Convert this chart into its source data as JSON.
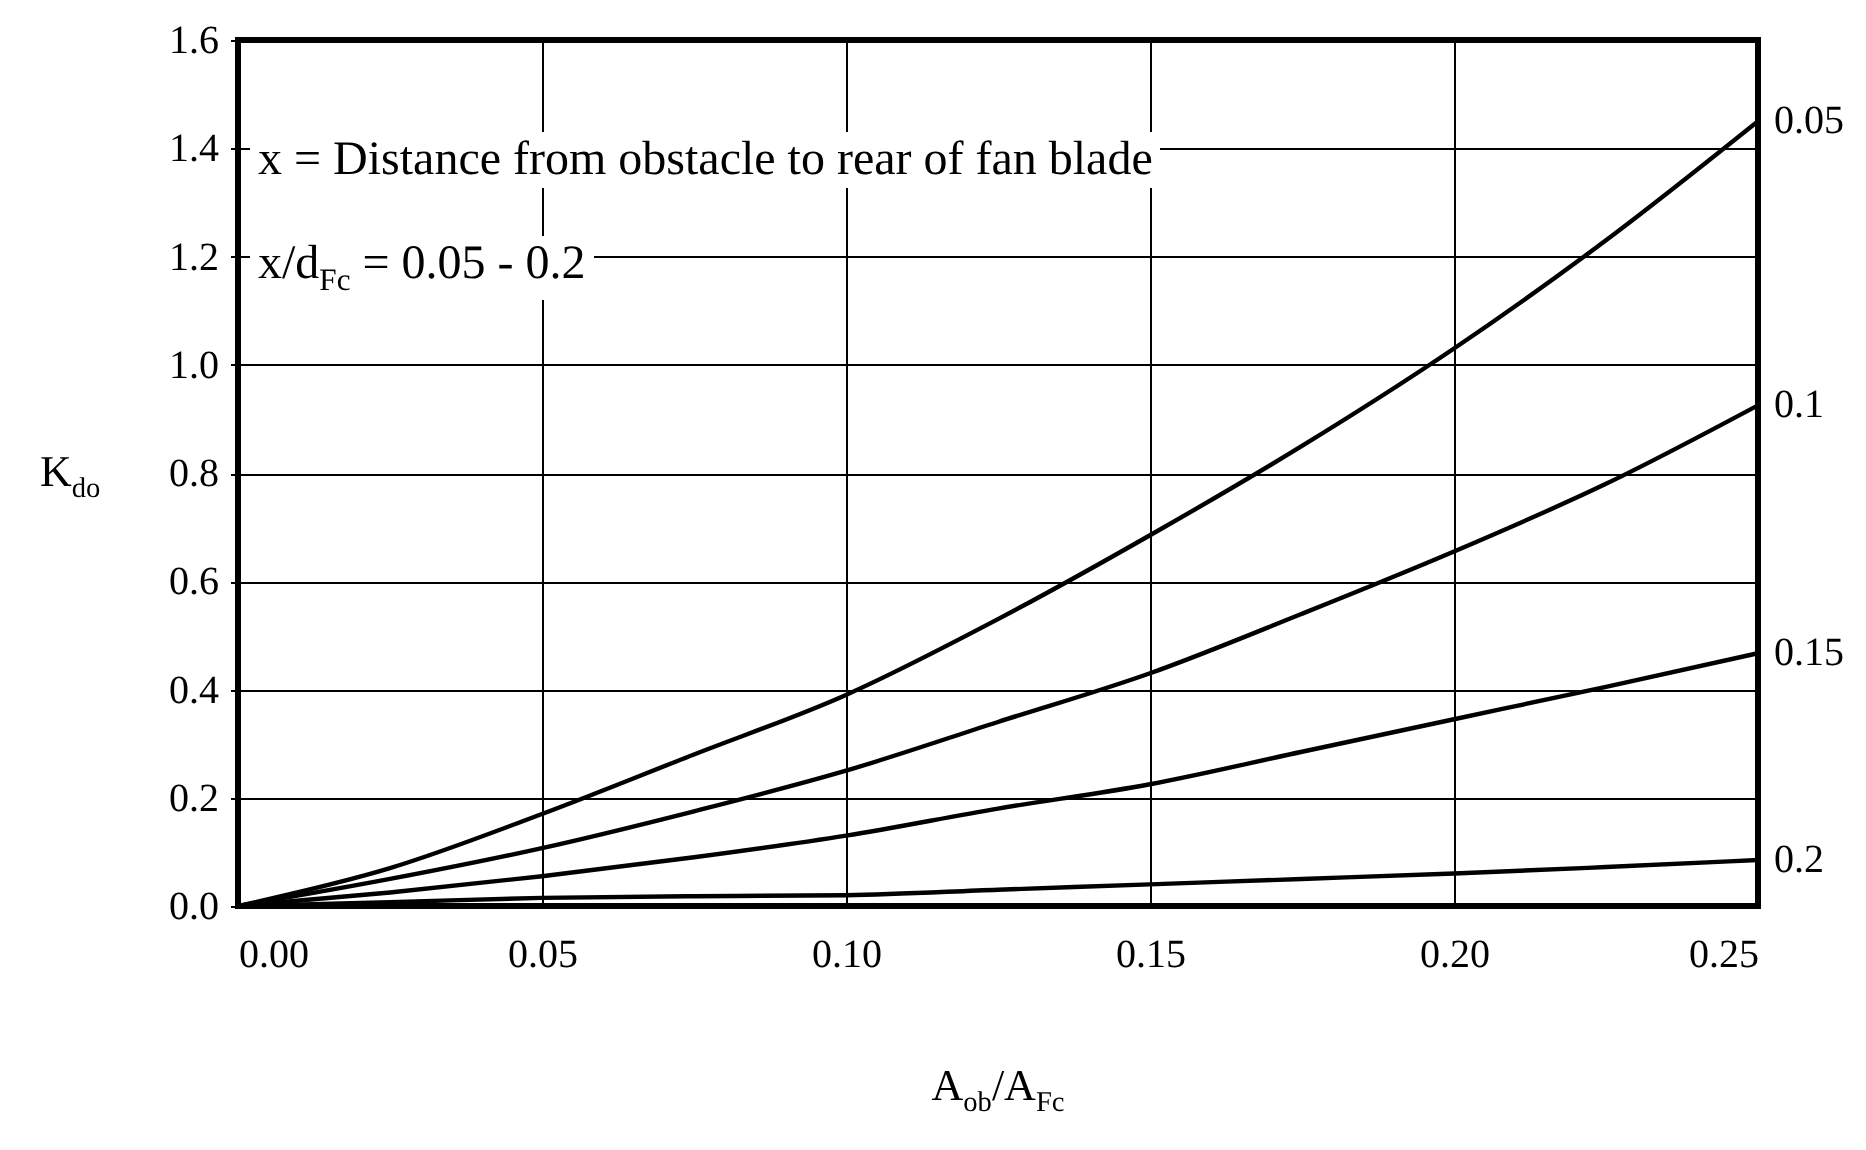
{
  "chart_data": {
    "type": "line",
    "xlabel": "A$_{ob}$/A$_{Fc}$",
    "ylabel": "K$_{do}$",
    "annotations": [
      "x = Distance from obstacle to rear of fan blade",
      "x/d$_{Fc}$ = 0.05 - 0.2"
    ],
    "x": [
      0,
      0.025,
      0.05,
      0.075,
      0.1,
      0.125,
      0.15,
      0.175,
      0.2,
      0.225,
      0.25
    ],
    "series": [
      {
        "name": "0.05",
        "color": "#000000",
        "values": [
          0,
          0.07,
          0.17,
          0.28,
          0.39,
          0.53,
          0.685,
          0.85,
          1.03,
          1.23,
          1.45
        ]
      },
      {
        "name": "0.1",
        "color": "#000000",
        "values": [
          0,
          0.05,
          0.107,
          0.175,
          0.25,
          0.34,
          0.43,
          0.54,
          0.655,
          0.78,
          0.925
        ]
      },
      {
        "name": "0.15",
        "color": "#000000",
        "values": [
          0,
          0.025,
          0.055,
          0.09,
          0.13,
          0.18,
          0.225,
          0.285,
          0.345,
          0.405,
          0.467
        ]
      },
      {
        "name": "0.2",
        "color": "#000000",
        "values": [
          0,
          0.007,
          0.015,
          0.018,
          0.02,
          0.03,
          0.04,
          0.05,
          0.06,
          0.072,
          0.085
        ]
      }
    ],
    "xlim": [
      0,
      0.25
    ],
    "ylim": [
      0,
      1.6
    ],
    "xticks": [
      {
        "value": 0,
        "label": "0.00"
      },
      {
        "value": 0.05,
        "label": "0.05"
      },
      {
        "value": 0.1,
        "label": "0.10"
      },
      {
        "value": 0.15,
        "label": "0.15"
      },
      {
        "value": 0.2,
        "label": "0.20"
      },
      {
        "value": 0.25,
        "label": "0.25"
      }
    ],
    "yticks": [
      {
        "value": 0,
        "label": "0.0"
      },
      {
        "value": 0.2,
        "label": "0.2"
      },
      {
        "value": 0.4,
        "label": "0.4"
      },
      {
        "value": 0.6,
        "label": "0.6"
      },
      {
        "value": 0.8,
        "label": "0.8"
      },
      {
        "value": 1,
        "label": "1.0"
      },
      {
        "value": 1.2,
        "label": "1.2"
      },
      {
        "value": 1.4,
        "label": "1.4"
      },
      {
        "value": 1.6,
        "label": "1.6"
      }
    ],
    "grid": true,
    "legend": false,
    "line_style": "solid"
  }
}
